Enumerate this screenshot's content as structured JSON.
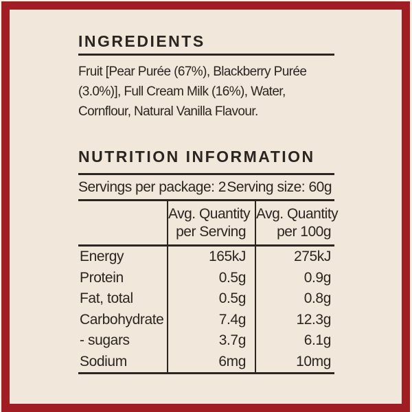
{
  "colors": {
    "frame_red": "#a01d24",
    "background_cream": "#f1e7da",
    "text": "#2b2521"
  },
  "label": {
    "ingredients": {
      "title": "INGREDIENTS",
      "lines": [
        "Fruit [Pear Purée (67%), Blackberry Purée",
        "(3.0%)], Full Cream Milk (16%), Water,",
        "Cornflour, Natural Vanilla Flavour."
      ]
    },
    "nutrition": {
      "title": "NUTRITION INFORMATION",
      "servings_per_package": "Servings per package: 2",
      "serving_size": "Serving size: 60g",
      "table": {
        "header": {
          "per_serving": [
            "Avg. Quantity",
            "per Serving"
          ],
          "per_100g": [
            "Avg. Quantity",
            "per 100g"
          ]
        },
        "rows": [
          {
            "label": "Energy",
            "per_serving": "165kJ",
            "per_100g": "275kJ"
          },
          {
            "label": "Protein",
            "per_serving": "0.5g",
            "per_100g": "0.9g"
          },
          {
            "label": "Fat, total",
            "per_serving": "0.5g",
            "per_100g": "0.8g"
          },
          {
            "label": "Carbohydrate",
            "per_serving": "7.4g",
            "per_100g": "12.3g"
          },
          {
            "label": "- sugars",
            "per_serving": "3.7g",
            "per_100g": "6.1g"
          },
          {
            "label": "Sodium",
            "per_serving": "6mg",
            "per_100g": "10mg"
          }
        ]
      }
    }
  }
}
